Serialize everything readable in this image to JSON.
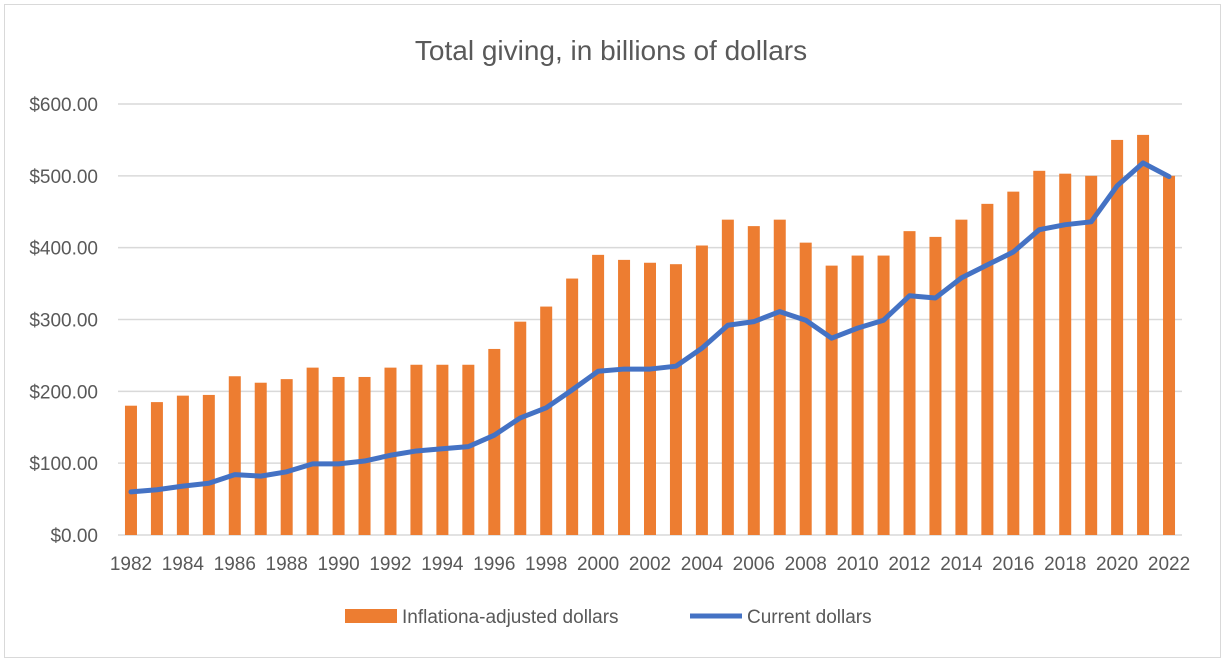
{
  "chart_data": {
    "type": "bar+line",
    "title": "Total giving, in billions of dollars",
    "xlabel": "",
    "ylabel": "",
    "ylim": [
      0,
      600
    ],
    "yticks": [
      "$0.00",
      "$100.00",
      "$200.00",
      "$300.00",
      "$400.00",
      "$500.00",
      "$600.00"
    ],
    "grid": true,
    "legend_position": "bottom",
    "categories": [
      1982,
      1983,
      1984,
      1985,
      1986,
      1987,
      1988,
      1989,
      1990,
      1991,
      1992,
      1993,
      1994,
      1995,
      1996,
      1997,
      1998,
      1999,
      2000,
      2001,
      2002,
      2003,
      2004,
      2005,
      2006,
      2007,
      2008,
      2009,
      2010,
      2011,
      2012,
      2013,
      2014,
      2015,
      2016,
      2017,
      2018,
      2019,
      2020,
      2021,
      2022
    ],
    "series": [
      {
        "name": "Inflationa-adjusted dollars",
        "type": "bar",
        "color": "#ED7D31",
        "values": [
          180,
          185,
          194,
          195,
          221,
          212,
          217,
          233,
          220,
          220,
          233,
          237,
          237,
          237,
          259,
          297,
          318,
          357,
          390,
          383,
          379,
          377,
          403,
          439,
          430,
          439,
          407,
          375,
          389,
          389,
          423,
          415,
          439,
          461,
          478,
          507,
          503,
          500,
          550,
          557,
          500
        ]
      },
      {
        "name": "Current dollars",
        "type": "line",
        "color": "#4472C4",
        "values": [
          60,
          63,
          68,
          72,
          84,
          82,
          88,
          99,
          99,
          103,
          111,
          117,
          120,
          123,
          139,
          163,
          177,
          202,
          228,
          231,
          231,
          235,
          260,
          292,
          297,
          311,
          299,
          274,
          288,
          299,
          333,
          330,
          358,
          376,
          394,
          425,
          432,
          436,
          486,
          518,
          499
        ]
      }
    ]
  }
}
